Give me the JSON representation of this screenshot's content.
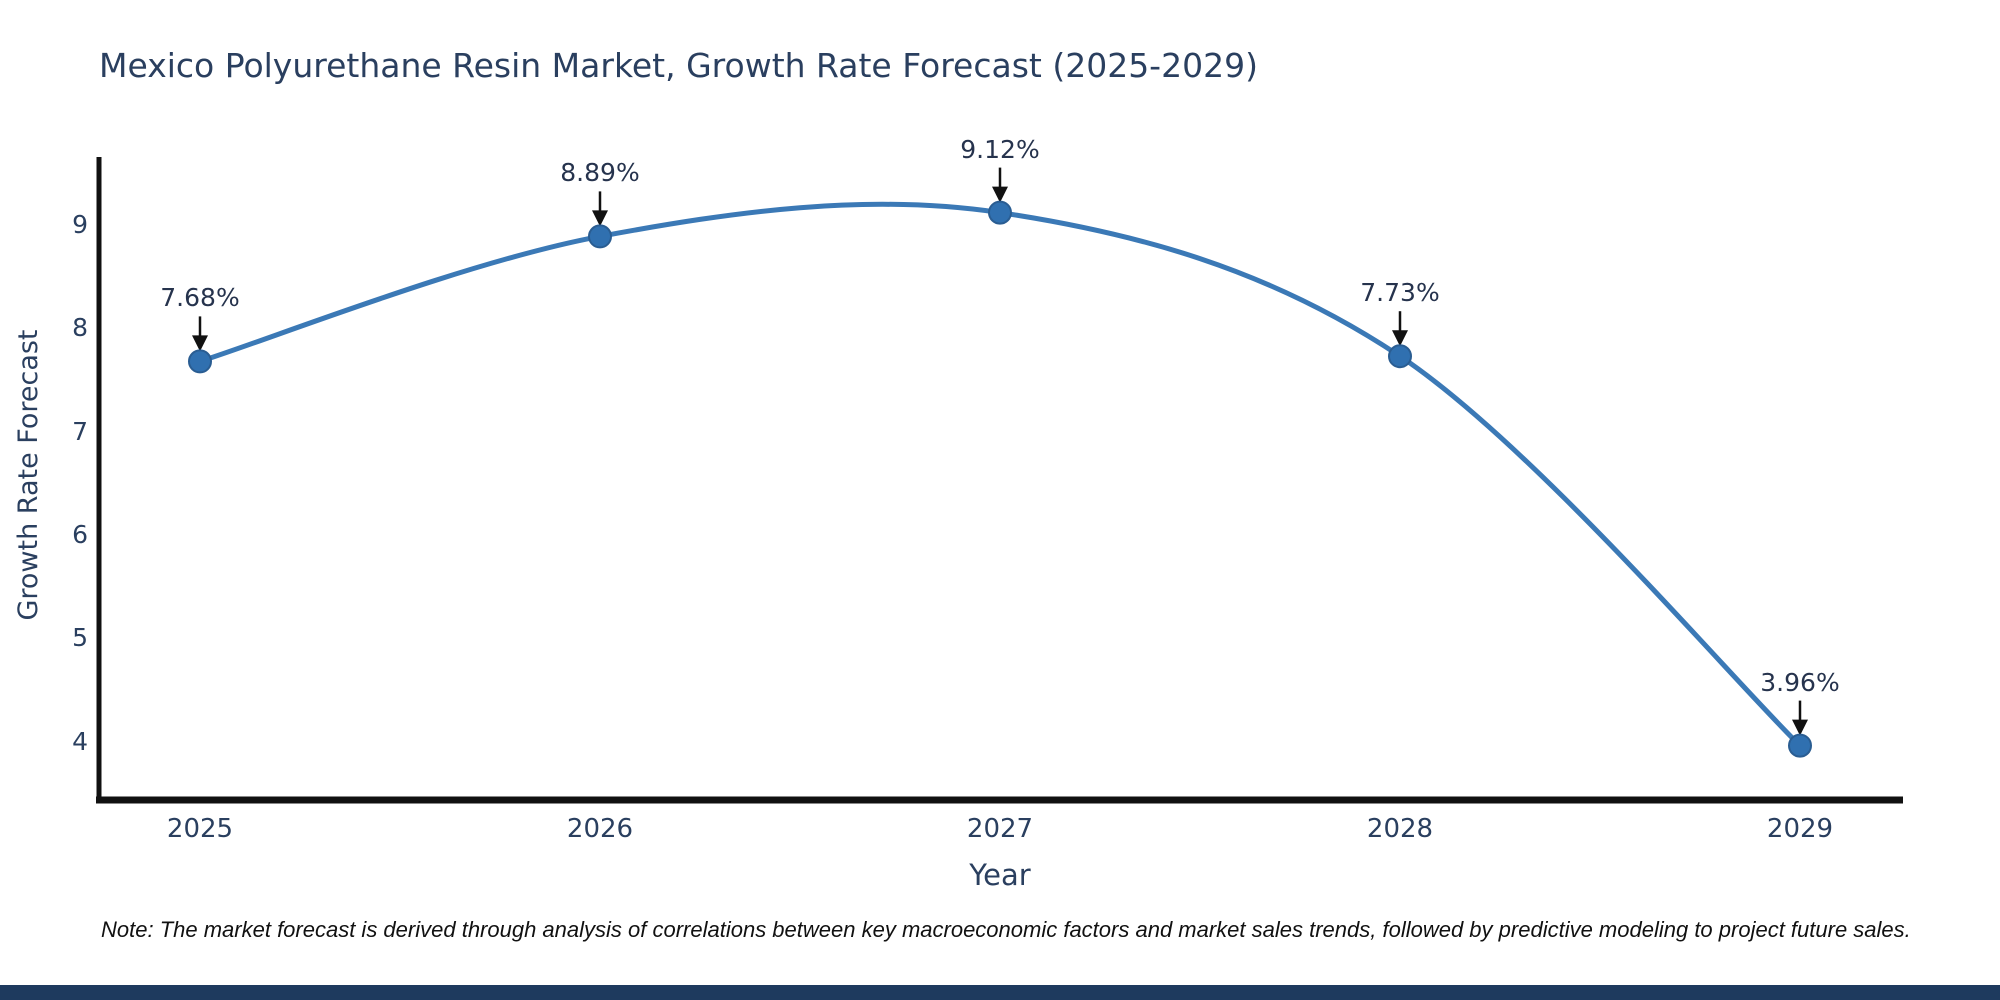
{
  "page": {
    "background_color": "#ffffff",
    "footer_bar_color": "#1e3a5e"
  },
  "title": {
    "text": "Mexico Polyurethane Resin Market, Growth Rate Forecast (2025-2029)",
    "color": "#2a3f5f"
  },
  "note": {
    "text": "Note: The market forecast is derived through analysis of correlations between key macroeconomic factors and market sales trends, followed by predictive modeling to project future sales."
  },
  "chart_data": {
    "type": "line",
    "title": "Mexico Polyurethane Resin Market, Growth Rate Forecast (2025-2029)",
    "xlabel": "Year",
    "ylabel": "Growth Rate Forecast",
    "categories": [
      "2025",
      "2026",
      "2027",
      "2028",
      "2029"
    ],
    "values": [
      7.68,
      8.89,
      9.12,
      7.73,
      3.96
    ],
    "point_labels": [
      "7.68%",
      "8.89%",
      "9.12%",
      "7.73%",
      "3.96%"
    ],
    "yticks": [
      9,
      8,
      7,
      6,
      5,
      4
    ],
    "ylim": [
      3.4,
      9.65
    ],
    "grid": false,
    "legend": "none",
    "line_shape": "spline",
    "line_color": "#3b79b6",
    "marker_color": "#3070b0",
    "marker_edge_color": "#2a5d92",
    "axis_color": "#111111",
    "tick_color": "#2a3f5f",
    "annotation_color": "#26334d",
    "arrow_color": "#111111"
  }
}
